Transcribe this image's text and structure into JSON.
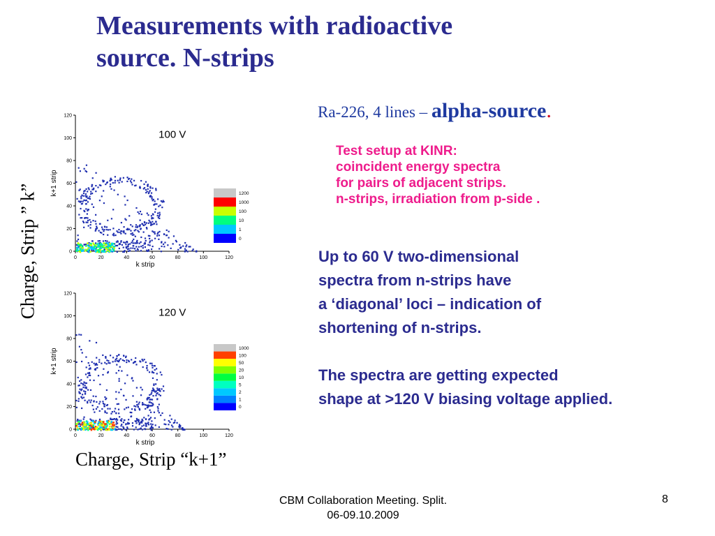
{
  "title": {
    "line1": "Measurements with radioactive",
    "line2": "source.  N-strips"
  },
  "subtitle": {
    "prefix": "Ra-226,  4 lines – ",
    "emphasis": "alpha-source",
    "suffix": "."
  },
  "setup_lines": [
    "Test setup at KINR:",
    "coincident energy spectra",
    "for pairs of adjacent strips.",
    "n-strips, irradiation from p-side ."
  ],
  "finding1_lines": [
    "Up to 60 V two-dimensional",
    "spectra from n-strips have",
    "a ‘diagonal’ loci – indication of",
    "shortening of n-strips."
  ],
  "finding2_lines": [
    "The spectra are getting expected",
    "shape at  >120 V biasing voltage applied."
  ],
  "axis_side_label": "Charge, Strip ” k”",
  "axis_bottom_label": "Charge, Strip “k+1”",
  "footer": {
    "line1": "CBM Collaboration Meeting. Split.",
    "line2": "06-09.10.2009",
    "page": "8"
  },
  "colors": {
    "title": "#2b2b8f",
    "pink": "#ee1c8c",
    "blue": "#2b2b8f",
    "accent_dot": "#d0021b"
  },
  "chart_data": [
    {
      "type": "heatmap",
      "title": "100 V",
      "xlabel": "k strip",
      "ylabel": "k+1 strip",
      "xlim": [
        0,
        120
      ],
      "ylim": [
        0,
        120
      ],
      "x_ticks": [
        "0",
        "20",
        "40",
        "60",
        "80",
        "100",
        "120"
      ],
      "y_ticks": [
        "0",
        "20",
        "40",
        "60",
        "80",
        "100",
        "120"
      ],
      "colorbar": {
        "labels": [
          "0",
          "1",
          "10",
          "100",
          "1000",
          "1200"
        ],
        "colors": [
          "#0000ff",
          "#00c8ff",
          "#00ff80",
          "#c8ff00",
          "#ff0000",
          "#c8c8c8"
        ]
      }
    },
    {
      "type": "heatmap",
      "title": "120 V",
      "xlabel": "k strip",
      "ylabel": "k+1 strip",
      "xlim": [
        0,
        120
      ],
      "ylim": [
        0,
        120
      ],
      "x_ticks": [
        "0",
        "20",
        "40",
        "60",
        "80",
        "100",
        "120"
      ],
      "y_ticks": [
        "0",
        "20",
        "40",
        "60",
        "80",
        "100",
        "120"
      ],
      "colorbar": {
        "labels": [
          "0",
          "1",
          "2",
          "5",
          "10",
          "20",
          "50",
          "100",
          "1000"
        ],
        "colors": [
          "#0000ff",
          "#0080ff",
          "#00c8ff",
          "#00ffc0",
          "#00ff40",
          "#80ff00",
          "#ffff00",
          "#ff4000",
          "#c8c8c8"
        ]
      }
    }
  ]
}
